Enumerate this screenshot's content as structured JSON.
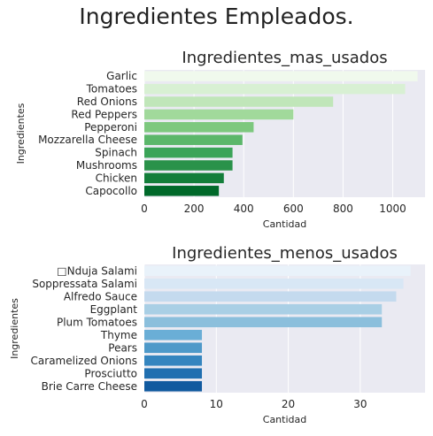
{
  "figure": {
    "suptitle": "Ingredientes Empleados."
  },
  "chart_data": [
    {
      "type": "bar",
      "orientation": "horizontal",
      "title": "Ingredientes_mas_usados",
      "xlabel": "Cantidad",
      "ylabel": "Ingredientes",
      "categories": [
        "Garlic",
        "Tomatoes",
        "Red Onions",
        "Red Peppers",
        "Pepperoni",
        "Mozzarella Cheese",
        "Spinach",
        "Mushrooms",
        "Chicken",
        "Capocollo"
      ],
      "values": [
        1100,
        1050,
        760,
        600,
        440,
        395,
        355,
        355,
        320,
        300
      ],
      "xlim": [
        0,
        1130
      ],
      "xticks": [
        0,
        200,
        400,
        600,
        800,
        1000
      ],
      "grid": true,
      "palette": "Greens",
      "colors": [
        "#f0f9ed",
        "#d8f0d3",
        "#c0e6b9",
        "#a1d99b",
        "#7dc87e",
        "#5bb76a",
        "#3ba458",
        "#2a924a",
        "#137e3a",
        "#00692a"
      ]
    },
    {
      "type": "bar",
      "orientation": "horizontal",
      "title": "Ingredientes_menos_usados",
      "xlabel": "Cantidad",
      "ylabel": "Ingredientes",
      "categories": [
        "□Nduja Salami",
        "Soppressata Salami",
        "Alfredo Sauce",
        "Eggplant",
        "Plum Tomatoes",
        "Thyme",
        "Pears",
        "Caramelized Onions",
        "Prosciutto",
        "Brie Carre Cheese"
      ],
      "values": [
        37,
        36,
        35,
        33,
        33,
        8,
        8,
        8,
        8,
        8
      ],
      "xlim": [
        0,
        39
      ],
      "xticks": [
        0,
        10,
        20,
        30
      ],
      "grid": true,
      "palette": "Blues",
      "colors": [
        "#e9f2fa",
        "#d8e7f5",
        "#c4daee",
        "#a9cfe5",
        "#8bbfdc",
        "#6aaed6",
        "#4e99c9",
        "#3585bf",
        "#206fb0",
        "#115a9f"
      ]
    }
  ]
}
